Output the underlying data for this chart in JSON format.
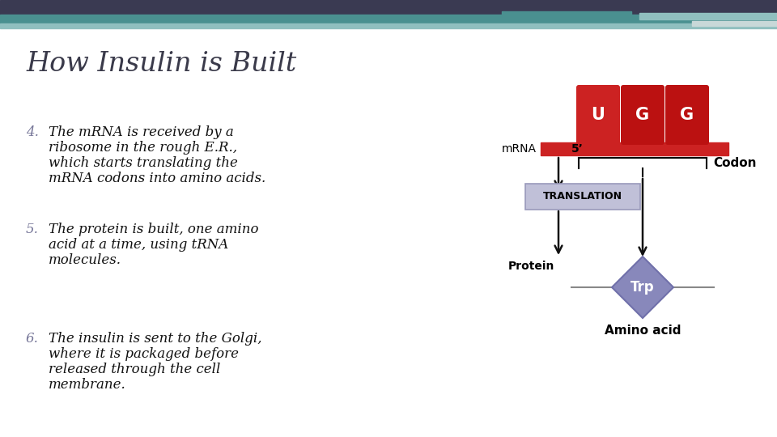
{
  "title": "How Insulin is Built",
  "title_color": "#3a3a4a",
  "title_fontsize": 24,
  "bg_color": "#ffffff",
  "header_bar_color1": "#3a3a52",
  "header_bar_color2": "#4a9090",
  "header_bar_color3": "#90bfbf",
  "body_items": [
    {
      "num": "4.",
      "text": "The mRNA is received by a\nribosome in the rough E.R.,\nwhich starts translating the\nmRNA codons into amino acids."
    },
    {
      "num": "5.",
      "text": "The protein is built, one amino\nacid at a time, using tRNA\nmolecules."
    },
    {
      "num": "6.",
      "text": "The insulin is sent to the Golgi,\nwhere it is packaged before\nreleased through the cell\nmembrane."
    }
  ],
  "text_color": "#111111",
  "num_color": "#777799",
  "diagram": {
    "mrna_label": "mRNA",
    "codon_label": "Codon",
    "translation_label": "TRANSLATION",
    "protein_label": "Protein",
    "trp_label": "Trp",
    "amino_acid_label": "Amino acid",
    "five_prime": "5’",
    "codons": [
      "U",
      "G",
      "G"
    ],
    "red_color": "#cc2222",
    "red_dark": "#bb1111",
    "blue_color": "#8888bb",
    "translation_box_color": "#c0c0d8",
    "arrow_color": "#111111"
  }
}
